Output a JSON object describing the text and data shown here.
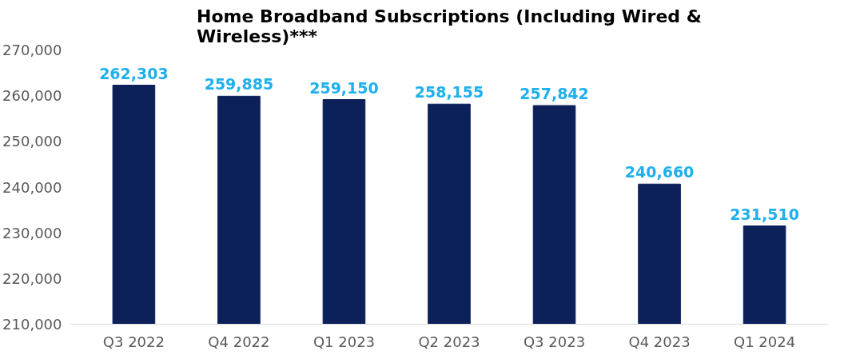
{
  "chart_data": {
    "type": "bar",
    "title": "Home Broadband Subscriptions (Including Wired & Wireless)***",
    "categories": [
      "Q3 2022",
      "Q4 2022",
      "Q1 2023",
      "Q2 2023",
      "Q3 2023",
      "Q4 2023",
      "Q1 2024"
    ],
    "values": [
      262303,
      259885,
      259150,
      258155,
      257842,
      240660,
      231510
    ],
    "color": "#0c2059",
    "value_labels": [
      "262,303",
      "259,885",
      "259,150",
      "258,155",
      "257,842",
      "240,660",
      "231,510"
    ],
    "ylim": [
      210000,
      270000
    ],
    "yticks": [
      {
        "value": 210000,
        "label": "210,000"
      },
      {
        "value": 220000,
        "label": "220,000"
      },
      {
        "value": 230000,
        "label": "230,000"
      },
      {
        "value": 240000,
        "label": "240,000"
      },
      {
        "value": 250000,
        "label": "250,000"
      },
      {
        "value": 260000,
        "label": "260,000"
      },
      {
        "value": 270000,
        "label": "270,000"
      }
    ],
    "grid": false
  }
}
